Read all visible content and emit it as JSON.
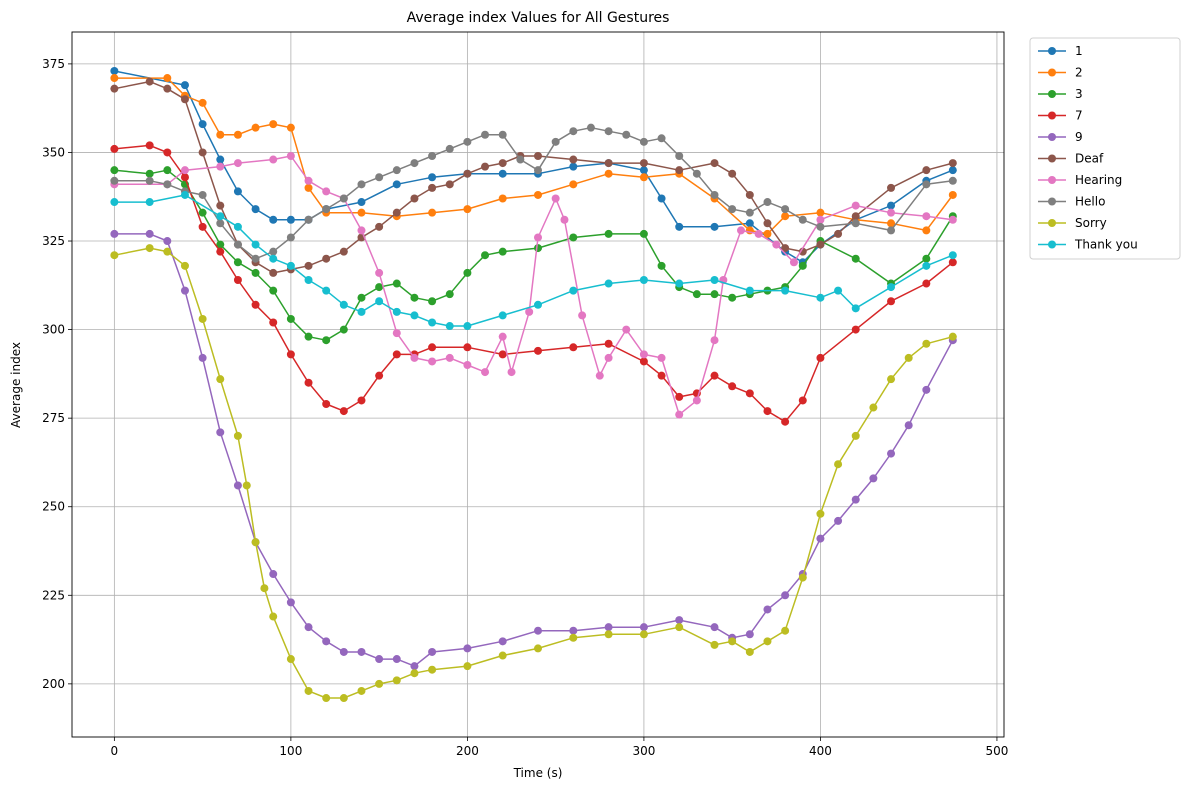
{
  "chart_data": {
    "type": "line",
    "title": "Average index Values for All Gestures",
    "xlabel": "Time (s)",
    "ylabel": "Average index",
    "xlim": [
      -24,
      504
    ],
    "ylim": [
      185,
      384
    ],
    "xticks": [
      0,
      100,
      200,
      300,
      400,
      500
    ],
    "yticks": [
      200,
      225,
      250,
      275,
      300,
      325,
      350,
      375
    ],
    "grid": true,
    "legend_position": "outside-top-right",
    "series": [
      {
        "name": "1",
        "color": "#1f77b4",
        "x": [
          0,
          40,
          50,
          60,
          70,
          80,
          90,
          100,
          110,
          120,
          140,
          160,
          180,
          200,
          220,
          240,
          260,
          280,
          300,
          310,
          320,
          340,
          360,
          380,
          390,
          400,
          420,
          440,
          460,
          475
        ],
        "y": [
          373,
          369,
          358,
          348,
          339,
          334,
          331,
          331,
          331,
          334,
          336,
          341,
          343,
          344,
          344,
          344,
          346,
          347,
          345,
          337,
          329,
          329,
          330,
          322,
          319,
          324,
          331,
          335,
          342,
          345
        ]
      },
      {
        "name": "2",
        "color": "#ff7f0e",
        "x": [
          0,
          30,
          40,
          50,
          60,
          70,
          80,
          90,
          100,
          110,
          120,
          140,
          160,
          180,
          200,
          220,
          240,
          260,
          280,
          300,
          320,
          340,
          360,
          370,
          380,
          400,
          420,
          440,
          460,
          475
        ],
        "y": [
          371,
          371,
          366,
          364,
          355,
          355,
          357,
          358,
          357,
          340,
          333,
          333,
          332,
          333,
          334,
          337,
          338,
          341,
          344,
          343,
          344,
          337,
          328,
          327,
          332,
          333,
          331,
          330,
          328,
          338
        ]
      },
      {
        "name": "3",
        "color": "#2ca02c",
        "x": [
          0,
          20,
          30,
          40,
          50,
          60,
          70,
          80,
          90,
          100,
          110,
          120,
          130,
          140,
          150,
          160,
          170,
          180,
          190,
          200,
          210,
          220,
          240,
          260,
          280,
          300,
          310,
          320,
          330,
          340,
          350,
          360,
          370,
          380,
          390,
          400,
          420,
          440,
          460,
          475
        ],
        "y": [
          345,
          344,
          345,
          341,
          333,
          324,
          319,
          316,
          311,
          303,
          298,
          297,
          300,
          309,
          312,
          313,
          309,
          308,
          310,
          316,
          321,
          322,
          323,
          326,
          327,
          327,
          318,
          312,
          310,
          310,
          309,
          310,
          311,
          312,
          318,
          325,
          320,
          313,
          320,
          332
        ]
      },
      {
        "name": "7",
        "color": "#d62728",
        "x": [
          0,
          20,
          30,
          40,
          50,
          60,
          70,
          80,
          90,
          100,
          110,
          120,
          130,
          140,
          150,
          160,
          170,
          180,
          200,
          220,
          240,
          260,
          280,
          300,
          310,
          320,
          330,
          340,
          350,
          360,
          370,
          380,
          390,
          400,
          420,
          440,
          460,
          475
        ],
        "y": [
          351,
          352,
          350,
          343,
          329,
          322,
          314,
          307,
          302,
          293,
          285,
          279,
          277,
          280,
          287,
          293,
          293,
          295,
          295,
          293,
          294,
          295,
          296,
          291,
          287,
          281,
          282,
          287,
          284,
          282,
          277,
          274,
          280,
          292,
          300,
          308,
          313,
          319
        ]
      },
      {
        "name": "9",
        "color": "#9467bd",
        "x": [
          0,
          20,
          30,
          40,
          50,
          60,
          70,
          80,
          90,
          100,
          110,
          120,
          130,
          140,
          150,
          160,
          170,
          180,
          200,
          220,
          240,
          260,
          280,
          300,
          320,
          340,
          350,
          360,
          370,
          380,
          390,
          400,
          410,
          420,
          430,
          440,
          450,
          460,
          475
        ],
        "y": [
          327,
          327,
          325,
          311,
          292,
          271,
          256,
          240,
          231,
          223,
          216,
          212,
          209,
          209,
          207,
          207,
          205,
          209,
          210,
          212,
          215,
          215,
          216,
          216,
          218,
          216,
          213,
          214,
          221,
          225,
          231,
          241,
          246,
          252,
          258,
          265,
          273,
          283,
          297
        ]
      },
      {
        "name": "Deaf",
        "color": "#8c564b",
        "x": [
          0,
          20,
          30,
          40,
          50,
          60,
          70,
          80,
          90,
          100,
          110,
          120,
          130,
          140,
          150,
          160,
          170,
          180,
          190,
          200,
          210,
          220,
          230,
          240,
          260,
          280,
          300,
          320,
          340,
          350,
          360,
          370,
          380,
          390,
          400,
          410,
          420,
          440,
          460,
          475
        ],
        "y": [
          368,
          370,
          368,
          365,
          350,
          335,
          324,
          319,
          316,
          317,
          318,
          320,
          322,
          326,
          329,
          333,
          337,
          340,
          341,
          344,
          346,
          347,
          349,
          349,
          348,
          347,
          347,
          345,
          347,
          344,
          338,
          330,
          323,
          322,
          324,
          327,
          332,
          340,
          345,
          347
        ]
      },
      {
        "name": "Hearing",
        "color": "#e377c2",
        "x": [
          0,
          30,
          40,
          60,
          70,
          90,
          100,
          110,
          120,
          130,
          140,
          150,
          160,
          170,
          180,
          190,
          200,
          210,
          220,
          225,
          235,
          240,
          250,
          255,
          265,
          275,
          280,
          290,
          300,
          310,
          320,
          330,
          340,
          345,
          355,
          365,
          375,
          385,
          400,
          420,
          440,
          460,
          475
        ],
        "y": [
          341,
          341,
          345,
          346,
          347,
          348,
          349,
          342,
          339,
          337,
          328,
          316,
          299,
          292,
          291,
          292,
          290,
          288,
          298,
          288,
          305,
          326,
          337,
          331,
          304,
          287,
          292,
          300,
          293,
          292,
          276,
          280,
          297,
          314,
          328,
          327,
          324,
          319,
          331,
          335,
          333,
          332,
          331
        ]
      },
      {
        "name": "Hello",
        "color": "#7f7f7f",
        "x": [
          0,
          20,
          30,
          40,
          50,
          60,
          70,
          80,
          90,
          100,
          110,
          120,
          130,
          140,
          150,
          160,
          170,
          180,
          190,
          200,
          210,
          220,
          230,
          240,
          250,
          260,
          270,
          280,
          290,
          300,
          310,
          320,
          330,
          340,
          350,
          360,
          370,
          380,
          390,
          400,
          420,
          440,
          460,
          475
        ],
        "y": [
          342,
          342,
          341,
          339,
          338,
          330,
          324,
          320,
          322,
          326,
          331,
          334,
          337,
          341,
          343,
          345,
          347,
          349,
          351,
          353,
          355,
          355,
          348,
          345,
          353,
          356,
          357,
          356,
          355,
          353,
          354,
          349,
          344,
          338,
          334,
          333,
          336,
          334,
          331,
          329,
          330,
          328,
          341,
          342
        ]
      },
      {
        "name": "Sorry",
        "color": "#bcbd22",
        "x": [
          0,
          20,
          30,
          40,
          50,
          60,
          70,
          75,
          80,
          85,
          90,
          100,
          110,
          120,
          130,
          140,
          150,
          160,
          170,
          180,
          200,
          220,
          240,
          260,
          280,
          300,
          320,
          340,
          350,
          360,
          370,
          380,
          390,
          400,
          410,
          420,
          430,
          440,
          450,
          460,
          475
        ],
        "y": [
          321,
          323,
          322,
          318,
          303,
          286,
          270,
          256,
          240,
          227,
          219,
          207,
          198,
          196,
          196,
          198,
          200,
          201,
          203,
          204,
          205,
          208,
          210,
          213,
          214,
          214,
          216,
          211,
          212,
          209,
          212,
          215,
          230,
          248,
          262,
          270,
          278,
          286,
          292,
          296,
          298
        ]
      },
      {
        "name": "Thank you",
        "color": "#17becf",
        "x": [
          0,
          20,
          40,
          60,
          70,
          80,
          90,
          100,
          110,
          120,
          130,
          140,
          150,
          160,
          170,
          180,
          190,
          200,
          220,
          240,
          260,
          280,
          300,
          320,
          340,
          360,
          380,
          400,
          410,
          420,
          440,
          460,
          475
        ],
        "y": [
          336,
          336,
          338,
          332,
          329,
          324,
          320,
          318,
          314,
          311,
          307,
          305,
          308,
          305,
          304,
          302,
          301,
          301,
          304,
          307,
          311,
          313,
          314,
          313,
          314,
          311,
          311,
          309,
          311,
          306,
          312,
          318,
          321
        ]
      }
    ]
  }
}
